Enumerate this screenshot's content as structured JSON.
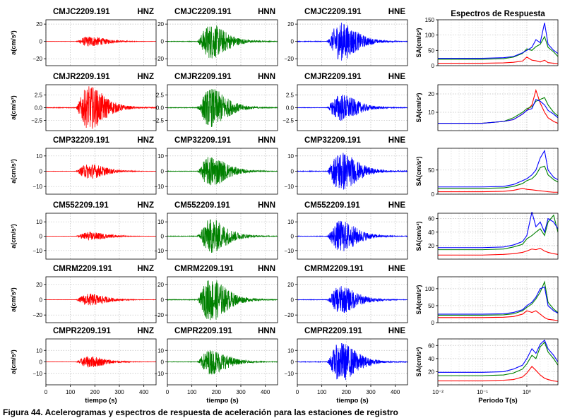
{
  "chart_data": {
    "type": "line",
    "caption": "Figura 44. Acelerogramas y espectros de respuesta de aceleración para las estaciones de registro",
    "columns": [
      {
        "component": "HNZ",
        "color": "#ff0000"
      },
      {
        "component": "HNN",
        "color": "#008000"
      },
      {
        "component": "HNE",
        "color": "#0000ff"
      }
    ],
    "time_axis": {
      "label": "tiempo (s)",
      "range": [
        0,
        450
      ],
      "ticks": [
        0,
        100,
        200,
        300,
        400
      ]
    },
    "accel_ylabel": "a(cm/s²)",
    "spectra": {
      "title": "Espectros de Respuesta",
      "xlabel": "Periodo T(s)",
      "ylabel": "SA(cm/s²)",
      "xscale": "log",
      "xlim": [
        0.01,
        5
      ],
      "xticks": [
        {
          "value": 0.01,
          "label": "10⁻²"
        },
        {
          "value": 0.1,
          "label": "10⁻¹"
        },
        {
          "value": 1,
          "label": "10⁰"
        }
      ]
    },
    "stations": [
      {
        "name": "CMJC2209.191",
        "accel_ylim": [
          -28,
          25
        ],
        "accel_yticks": [
          {
            "value": 20,
            "label": "20"
          },
          {
            "value": 0,
            "label": "0"
          },
          {
            "value": -20,
            "label": "−20"
          }
        ],
        "peak_accel": [
          6,
          20,
          22
        ],
        "sa_ylim": [
          0,
          150
        ],
        "sa_yticks": [
          0,
          50,
          100,
          150
        ],
        "spectra": [
          {
            "component": "HNZ",
            "T": [
              0.01,
              0.1,
              0.3,
              0.5,
              0.8,
              1.0,
              1.3,
              1.6,
              2.0,
              2.5,
              3.0,
              4.0,
              5.0
            ],
            "SA": [
              8,
              8,
              9,
              11,
              15,
              28,
              18,
              16,
              12,
              18,
              10,
              8,
              6
            ]
          },
          {
            "component": "HNN",
            "T": [
              0.01,
              0.1,
              0.3,
              0.5,
              0.8,
              1.0,
              1.3,
              1.6,
              2.0,
              2.5,
              3.0,
              4.0,
              5.0
            ],
            "SA": [
              21,
              21,
              23,
              28,
              40,
              55,
              50,
              62,
              70,
              95,
              60,
              45,
              30
            ]
          },
          {
            "component": "HNE",
            "T": [
              0.01,
              0.1,
              0.3,
              0.5,
              0.8,
              1.0,
              1.3,
              1.6,
              2.0,
              2.5,
              3.0,
              4.0,
              5.0
            ],
            "SA": [
              24,
              24,
              26,
              30,
              42,
              50,
              60,
              85,
              75,
              140,
              70,
              50,
              40
            ]
          }
        ]
      },
      {
        "name": "CMJR2209.191",
        "accel_ylim": [
          -4.5,
          4.5
        ],
        "accel_yticks": [
          {
            "value": 2.5,
            "label": "2.5"
          },
          {
            "value": 0,
            "label": "0.0"
          },
          {
            "value": -2.5,
            "label": "−2.5"
          }
        ],
        "peak_accel": [
          4.2,
          3.8,
          2.7
        ],
        "sa_ylim": [
          0,
          25
        ],
        "sa_yticks": [
          10,
          20
        ],
        "spectra": [
          {
            "component": "HNZ",
            "T": [
              0.01,
              0.1,
              0.3,
              0.5,
              0.8,
              1.0,
              1.3,
              1.6,
              2.0,
              2.5,
              3.0,
              4.0,
              5.0
            ],
            "SA": [
              4,
              4,
              5,
              6,
              9,
              11,
              14,
              22,
              15,
              10,
              7,
              5,
              4
            ]
          },
          {
            "component": "HNN",
            "T": [
              0.01,
              0.1,
              0.3,
              0.5,
              0.8,
              1.0,
              1.3,
              1.6,
              2.0,
              2.5,
              3.0,
              4.0,
              5.0
            ],
            "SA": [
              4,
              4,
              5,
              7,
              10,
              12,
              13,
              16,
              17,
              18,
              14,
              10,
              8
            ]
          },
          {
            "component": "HNE",
            "T": [
              0.01,
              0.1,
              0.3,
              0.5,
              0.8,
              1.0,
              1.3,
              1.6,
              2.0,
              2.5,
              3.0,
              4.0,
              5.0
            ],
            "SA": [
              4,
              4,
              5,
              6,
              9,
              11,
              12,
              17,
              16,
              14,
              11,
              9,
              7
            ]
          }
        ]
      },
      {
        "name": "CMP32209.191",
        "accel_ylim": [
          -15,
          15
        ],
        "accel_yticks": [
          {
            "value": 10,
            "label": "10"
          },
          {
            "value": 0,
            "label": "0"
          },
          {
            "value": -10,
            "label": "−10"
          }
        ],
        "peak_accel": [
          5,
          10,
          13
        ],
        "sa_ylim": [
          0,
          95
        ],
        "sa_yticks": [
          0,
          50
        ],
        "spectra": [
          {
            "component": "HNZ",
            "T": [
              0.01,
              0.1,
              0.3,
              0.5,
              0.8,
              1.0,
              1.3,
              1.6,
              2.0,
              2.5,
              3.0,
              4.0,
              5.0
            ],
            "SA": [
              5,
              5,
              6,
              8,
              12,
              10,
              9,
              8,
              7,
              6,
              5,
              4,
              4
            ]
          },
          {
            "component": "HNN",
            "T": [
              0.01,
              0.1,
              0.3,
              0.5,
              0.8,
              1.0,
              1.3,
              1.6,
              2.0,
              2.5,
              3.0,
              4.0,
              5.0
            ],
            "SA": [
              12,
              12,
              13,
              16,
              22,
              28,
              32,
              40,
              55,
              58,
              40,
              30,
              25
            ]
          },
          {
            "component": "HNE",
            "T": [
              0.01,
              0.1,
              0.3,
              0.5,
              0.8,
              1.0,
              1.3,
              1.6,
              2.0,
              2.5,
              3.0,
              4.0,
              5.0
            ],
            "SA": [
              15,
              15,
              16,
              20,
              28,
              32,
              40,
              50,
              75,
              90,
              50,
              35,
              30
            ]
          }
        ]
      },
      {
        "name": "CM552209.191",
        "accel_ylim": [
          -16,
          16
        ],
        "accel_yticks": [
          {
            "value": 10,
            "label": "10"
          },
          {
            "value": 0,
            "label": "0"
          },
          {
            "value": -10,
            "label": "−10"
          }
        ],
        "peak_accel": [
          3,
          12,
          11
        ],
        "sa_ylim": [
          0,
          68
        ],
        "sa_yticks": [
          20,
          40,
          60
        ],
        "spectra": [
          {
            "component": "HNZ",
            "T": [
              0.01,
              0.1,
              0.3,
              0.5,
              0.8,
              1.0,
              1.3,
              1.6,
              2.0,
              2.5,
              3.0,
              4.0,
              5.0
            ],
            "SA": [
              6,
              6,
              7,
              8,
              10,
              12,
              15,
              14,
              16,
              12,
              10,
              8,
              7
            ]
          },
          {
            "component": "HNN",
            "T": [
              0.01,
              0.1,
              0.3,
              0.5,
              0.8,
              1.0,
              1.3,
              1.6,
              2.0,
              2.5,
              3.0,
              4.0,
              5.0
            ],
            "SA": [
              14,
              14,
              15,
              18,
              22,
              30,
              35,
              40,
              45,
              35,
              55,
              65,
              40
            ]
          },
          {
            "component": "HNE",
            "T": [
              0.01,
              0.1,
              0.3,
              0.5,
              0.8,
              1.0,
              1.3,
              1.6,
              2.0,
              2.5,
              3.0,
              4.0,
              5.0
            ],
            "SA": [
              17,
              17,
              18,
              21,
              26,
              35,
              70,
              48,
              55,
              40,
              60,
              55,
              45
            ]
          }
        ]
      },
      {
        "name": "CMRM2209.191",
        "accel_ylim": [
          -30,
          30
        ],
        "accel_yticks": [
          {
            "value": 20,
            "label": "20"
          },
          {
            "value": 0,
            "label": "0"
          },
          {
            "value": -20,
            "label": "−20"
          }
        ],
        "peak_accel": [
          8,
          28,
          18
        ],
        "sa_ylim": [
          0,
          135
        ],
        "sa_yticks": [
          0,
          50,
          100
        ],
        "spectra": [
          {
            "component": "HNZ",
            "T": [
              0.01,
              0.1,
              0.3,
              0.5,
              0.8,
              1.0,
              1.3,
              1.6,
              2.0,
              2.5,
              3.0,
              4.0,
              5.0
            ],
            "SA": [
              15,
              15,
              16,
              18,
              25,
              35,
              30,
              35,
              25,
              15,
              10,
              8,
              6
            ]
          },
          {
            "component": "HNN",
            "T": [
              0.01,
              0.1,
              0.3,
              0.5,
              0.8,
              1.0,
              1.3,
              1.6,
              2.0,
              2.5,
              3.0,
              4.0,
              5.0
            ],
            "SA": [
              22,
              22,
              23,
              26,
              35,
              45,
              55,
              70,
              90,
              120,
              60,
              40,
              30
            ]
          },
          {
            "component": "HNE",
            "T": [
              0.01,
              0.1,
              0.3,
              0.5,
              0.8,
              1.0,
              1.3,
              1.6,
              2.0,
              2.5,
              3.0,
              4.0,
              5.0
            ],
            "SA": [
              25,
              25,
              26,
              30,
              38,
              50,
              60,
              75,
              100,
              105,
              50,
              35,
              28
            ]
          }
        ]
      },
      {
        "name": "CMPR2209.191",
        "accel_ylim": [
          -20,
          20
        ],
        "accel_yticks": [
          {
            "value": 10,
            "label": "10"
          },
          {
            "value": 0,
            "label": "0"
          },
          {
            "value": -10,
            "label": "−10"
          }
        ],
        "peak_accel": [
          5,
          11,
          17
        ],
        "sa_ylim": [
          0,
          70
        ],
        "sa_yticks": [
          20,
          40,
          60
        ],
        "spectra": [
          {
            "component": "HNZ",
            "T": [
              0.01,
              0.1,
              0.3,
              0.5,
              0.8,
              1.0,
              1.3,
              1.6,
              2.0,
              2.5,
              3.0,
              4.0,
              5.0
            ],
            "SA": [
              6,
              6,
              7,
              8,
              12,
              18,
              28,
              22,
              15,
              10,
              8,
              6,
              5
            ]
          },
          {
            "component": "HNN",
            "T": [
              0.01,
              0.1,
              0.3,
              0.5,
              0.8,
              1.0,
              1.3,
              1.6,
              2.0,
              2.5,
              3.0,
              4.0,
              5.0
            ],
            "SA": [
              14,
              14,
              15,
              18,
              24,
              32,
              45,
              40,
              58,
              65,
              50,
              40,
              30
            ]
          },
          {
            "component": "HNE",
            "T": [
              0.01,
              0.1,
              0.3,
              0.5,
              0.8,
              1.0,
              1.3,
              1.6,
              2.0,
              2.5,
              3.0,
              4.0,
              5.0
            ],
            "SA": [
              19,
              19,
              20,
              24,
              30,
              40,
              55,
              48,
              62,
              68,
              55,
              45,
              35
            ]
          }
        ]
      }
    ]
  }
}
